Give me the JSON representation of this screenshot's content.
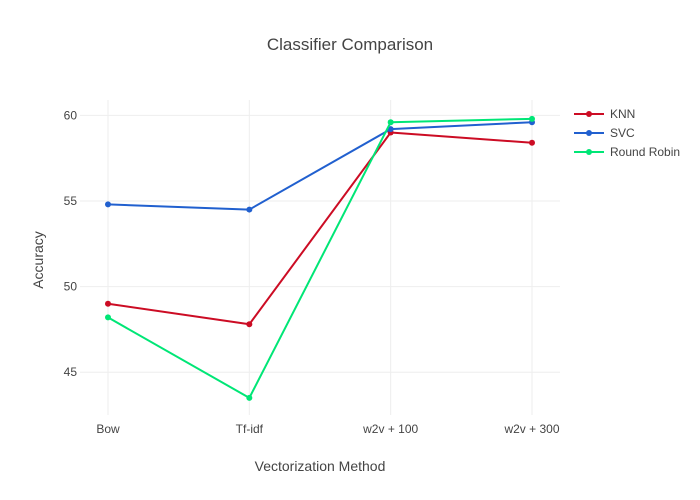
{
  "chart_data": {
    "type": "line",
    "title": "Classifier Comparison",
    "xlabel": "Vectorization Method",
    "ylabel": "Accuracy",
    "categories": [
      "Bow",
      "Tf-idf",
      "w2v + 100",
      "w2v + 300"
    ],
    "ylim": [
      42.5,
      60.9
    ],
    "yticks": [
      45,
      50,
      55,
      60
    ],
    "grid": true,
    "legend_position": "top-right",
    "series": [
      {
        "name": "KNN",
        "color": "#cc0c24",
        "values": [
          49.0,
          47.8,
          59.0,
          58.4
        ]
      },
      {
        "name": "SVC",
        "color": "#2160cf",
        "values": [
          54.8,
          54.5,
          59.2,
          59.6
        ]
      },
      {
        "name": "Round Robin",
        "color": "#00e676",
        "values": [
          48.2,
          43.5,
          59.6,
          59.8
        ]
      }
    ]
  }
}
